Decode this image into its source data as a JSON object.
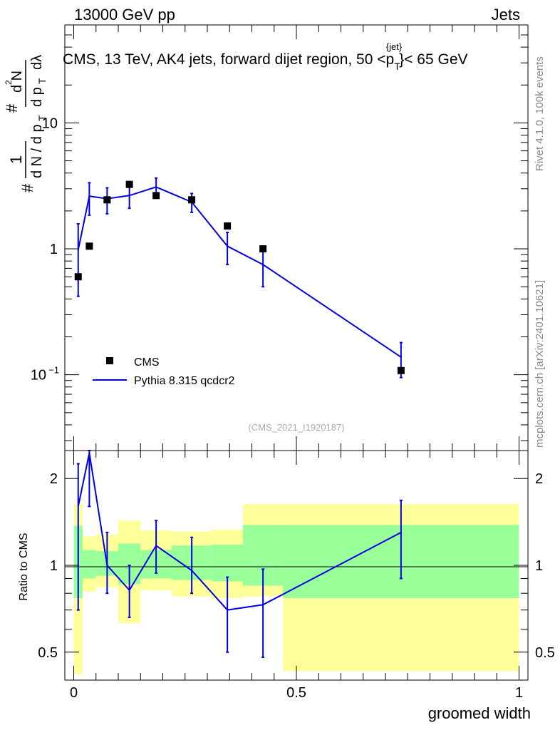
{
  "header": {
    "left": "13000 GeV pp",
    "right": "Jets",
    "side_rivet": "Rivet 4.1.0,  100k events",
    "side_site": "mcplots.cern.ch [arXiv:2401.10621]"
  },
  "colors": {
    "cms": "#000000",
    "pythia": "#0000e6",
    "band_inner": "#99ff99",
    "band_outer": "#ffff99"
  },
  "chart_data": [
    {
      "type": "scatter",
      "title": "CMS, 13 TeV, AK4 jets, forward dijet region, 50 <p",
      "title_sup": "{jet}",
      "title_sub": "T",
      "title_end": "}< 65 GeV",
      "xlabel": "",
      "ylabel": {
        "hash1": "#",
        "one": "1",
        "dN_dp": "d N / d p",
        "T": "T",
        "hash2": "#",
        "dp": "d p",
        "d2N": "d N",
        "sup2": "2",
        "dlambda": "dλ"
      },
      "ylog": true,
      "ylim": [
        0.025,
        60
      ],
      "xlim": [
        -0.02,
        1.02
      ],
      "yticks": [
        {
          "v": 0.1,
          "label": "10",
          "sup": "−1"
        },
        {
          "v": 1,
          "label": "1",
          "sup": ""
        },
        {
          "v": 10,
          "label": "10",
          "sup": ""
        }
      ],
      "watermark": "(CMS_2021_I1920187)",
      "legend": [
        {
          "name": "CMS",
          "kind": "marker"
        },
        {
          "name": "Pythia 8.315 qcdcr2",
          "kind": "line"
        }
      ],
      "series": [
        {
          "name": "CMS",
          "x": [
            0.01,
            0.035,
            0.075,
            0.125,
            0.185,
            0.265,
            0.345,
            0.425,
            0.735
          ],
          "y": [
            0.6,
            1.05,
            2.45,
            3.25,
            2.65,
            2.45,
            1.52,
            1.0,
            0.108
          ]
        },
        {
          "name": "Pythia 8.315 qcdcr2",
          "x": [
            0.01,
            0.035,
            0.075,
            0.125,
            0.185,
            0.265,
            0.345,
            0.425,
            0.735
          ],
          "y": [
            0.98,
            2.62,
            2.5,
            2.65,
            3.1,
            2.35,
            1.05,
            0.75,
            0.138
          ],
          "err_lo": [
            0.42,
            1.85,
            1.9,
            2.1,
            2.55,
            1.95,
            0.75,
            0.5,
            0.095
          ],
          "err_hi": [
            1.58,
            3.35,
            3.05,
            3.2,
            3.65,
            2.75,
            1.35,
            1.0,
            0.18
          ]
        }
      ]
    },
    {
      "type": "line",
      "title": "",
      "xlabel": "groomed width",
      "ylabel": "Ratio to CMS",
      "ylog": true,
      "ylim": [
        0.4,
        2.5
      ],
      "xlim": [
        -0.02,
        1.02
      ],
      "xticks": [
        0,
        0.5,
        1
      ],
      "xtick_labels": [
        "0",
        "0.5",
        "1"
      ],
      "yticks": [
        0.5,
        1,
        2
      ],
      "ytick_labels": [
        "0.5",
        "1",
        "2"
      ],
      "bands": {
        "edges": [
          0,
          0.02,
          0.05,
          0.1,
          0.15,
          0.22,
          0.31,
          0.38,
          0.47,
          1.0
        ],
        "inner_lo": [
          0.77,
          0.9,
          0.92,
          0.86,
          0.9,
          0.89,
          0.88,
          0.85,
          0.77
        ],
        "inner_hi": [
          1.37,
          1.13,
          1.12,
          1.19,
          1.13,
          1.17,
          1.18,
          1.38,
          1.38
        ],
        "outer_lo": [
          0.42,
          0.81,
          0.84,
          0.63,
          0.82,
          0.78,
          0.77,
          0.78,
          0.43
        ],
        "outer_hi": [
          1.63,
          1.26,
          1.28,
          1.43,
          1.32,
          1.31,
          1.33,
          1.63,
          1.63
        ]
      },
      "series": [
        {
          "name": "Pythia 8.315 qcdcr2",
          "x": [
            0.01,
            0.035,
            0.075,
            0.125,
            0.185,
            0.265,
            0.345,
            0.425,
            0.735
          ],
          "y": [
            1.6,
            2.45,
            1.0,
            0.82,
            1.17,
            0.96,
            0.7,
            0.73,
            1.3
          ],
          "err_lo": [
            0.7,
            1.6,
            0.8,
            0.66,
            0.94,
            0.8,
            0.5,
            0.48,
            0.9
          ],
          "err_hi": [
            2.25,
            2.5,
            1.3,
            1.0,
            1.43,
            1.25,
            0.91,
            0.97,
            1.68
          ]
        }
      ]
    }
  ]
}
